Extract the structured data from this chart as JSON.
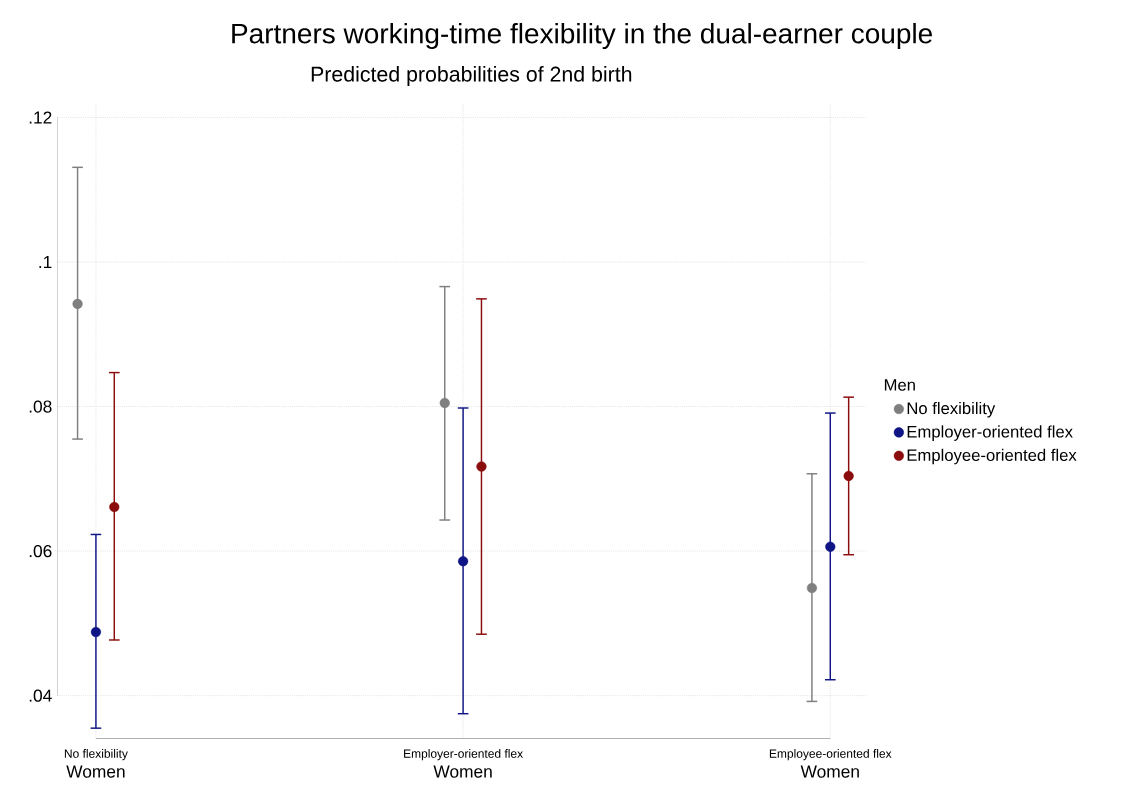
{
  "chart_data": {
    "type": "scatter",
    "title": "Partners working-time flexibility in the dual-earner couple",
    "subtitle": "Predicted probabilities of 2nd birth",
    "xlabel": "Women",
    "legend_title": "Men",
    "categories": [
      "No flexibility",
      "Employer-oriented flex",
      "Employee-oriented flex"
    ],
    "series": [
      {
        "name": "No flexibility",
        "color": "#7f7f7f",
        "values": [
          0.0942,
          0.0805,
          0.0549
        ],
        "errors": [
          [
            0.0755,
            0.1131
          ],
          [
            0.0643,
            0.0966
          ],
          [
            0.0392,
            0.0707
          ]
        ]
      },
      {
        "name": "Employer-oriented flex",
        "color": "#101585",
        "values": [
          0.0488,
          0.0586,
          0.0606
        ],
        "errors": [
          [
            0.0355,
            0.0623
          ],
          [
            0.0375,
            0.0798
          ],
          [
            0.0422,
            0.0791
          ]
        ]
      },
      {
        "name": "Employee-oriented flex",
        "color": "#8b0c0c",
        "values": [
          0.0661,
          0.0717,
          0.0704
        ],
        "errors": [
          [
            0.0477,
            0.0847
          ],
          [
            0.0485,
            0.0949
          ],
          [
            0.0595,
            0.0813
          ]
        ]
      }
    ],
    "ylim": [
      0.034,
      0.122
    ],
    "yticks": [
      {
        "value": 0.04,
        "label": ".04"
      },
      {
        "value": 0.06,
        "label": ".06"
      },
      {
        "value": 0.08,
        "label": ".08"
      },
      {
        "value": 0.1,
        "label": ".1"
      },
      {
        "value": 0.12,
        "label": ".12"
      }
    ],
    "grid": true,
    "legend": "right"
  }
}
